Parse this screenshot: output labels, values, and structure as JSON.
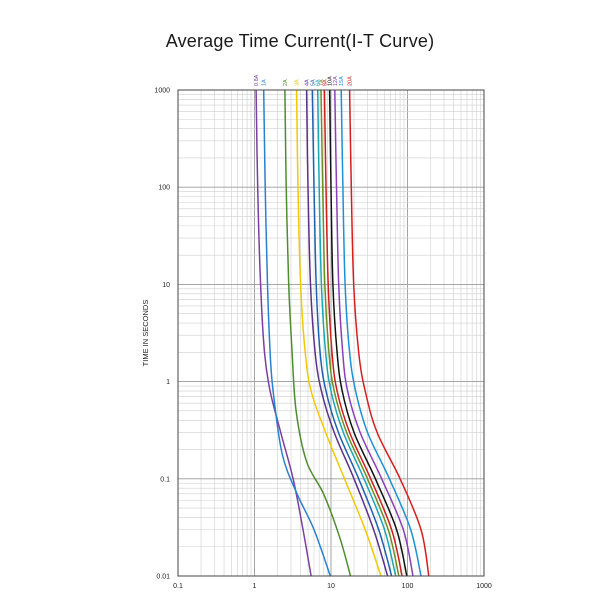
{
  "chart_data": {
    "type": "line",
    "title": "Average Time Current(I-T Curve)",
    "xlabel": "",
    "ylabel": "TIME IN SECONDS",
    "xscale": "log",
    "yscale": "log",
    "xlim": [
      0.1,
      1000
    ],
    "ylim": [
      0.01,
      1000
    ],
    "x_ticks": [
      "0.1",
      "1",
      "10",
      "100",
      "1000"
    ],
    "y_ticks": [
      "0.01",
      "0.1",
      "1",
      "10",
      "100",
      "1000"
    ],
    "grid": true,
    "legend_position": "top",
    "series": [
      {
        "name": "0.8A",
        "color": "#7a3fa0",
        "x": [
          1.05,
          1.1,
          1.2,
          1.35,
          1.6,
          2.2,
          3.2,
          4.3,
          5.5
        ],
        "y": [
          1000,
          100,
          10,
          2,
          0.8,
          0.3,
          0.1,
          0.03,
          0.01
        ]
      },
      {
        "name": "1A",
        "color": "#2a7fd0",
        "x": [
          1.32,
          1.38,
          1.48,
          1.6,
          1.75,
          2.3,
          3.6,
          6.0,
          9.8
        ],
        "y": [
          1000,
          100,
          10,
          2,
          0.8,
          0.18,
          0.07,
          0.03,
          0.01
        ]
      },
      {
        "name": "2A",
        "color": "#4e8c2e",
        "x": [
          2.5,
          2.6,
          2.8,
          3.1,
          3.5,
          4.8,
          8.0,
          13.0,
          18.0
        ],
        "y": [
          1000,
          100,
          10,
          2,
          0.5,
          0.15,
          0.07,
          0.025,
          0.01
        ]
      },
      {
        "name": "3A",
        "color": "#f2c800",
        "x": [
          3.55,
          3.7,
          4.0,
          4.6,
          5.5,
          8.5,
          15.0,
          28.0,
          45.0
        ],
        "y": [
          1000,
          100,
          10,
          2,
          0.8,
          0.3,
          0.1,
          0.03,
          0.01
        ]
      },
      {
        "name": "4A",
        "color": "#5c2f8a",
        "x": [
          4.8,
          5.0,
          5.4,
          6.2,
          7.5,
          11.0,
          20.0,
          36.0,
          55.0
        ],
        "y": [
          1000,
          100,
          10,
          2,
          0.8,
          0.3,
          0.1,
          0.03,
          0.01
        ]
      },
      {
        "name": "5A",
        "color": "#1f5fb0",
        "x": [
          5.7,
          6.0,
          6.4,
          7.2,
          8.6,
          12.5,
          23.0,
          42.0,
          62.0
        ],
        "y": [
          1000,
          100,
          10,
          2,
          0.8,
          0.3,
          0.1,
          0.03,
          0.01
        ]
      },
      {
        "name": "6A",
        "color": "#1aa6b5",
        "x": [
          6.7,
          7.0,
          7.5,
          8.5,
          10.0,
          14.5,
          27.0,
          50.0,
          70.0
        ],
        "y": [
          1000,
          100,
          10,
          2,
          0.8,
          0.3,
          0.1,
          0.03,
          0.01
        ]
      },
      {
        "name": "7A",
        "color": "#6b8e23",
        "x": [
          7.4,
          7.8,
          8.3,
          9.4,
          11.0,
          16.0,
          30.0,
          56.0,
          77.0
        ],
        "y": [
          1000,
          100,
          10,
          2,
          0.8,
          0.3,
          0.1,
          0.03,
          0.01
        ]
      },
      {
        "name": "8A",
        "color": "#d11c1c",
        "x": [
          8.2,
          8.6,
          9.2,
          10.3,
          12.0,
          17.5,
          33.0,
          62.0,
          85.0
        ],
        "y": [
          1000,
          100,
          10,
          2,
          0.8,
          0.3,
          0.1,
          0.03,
          0.01
        ]
      },
      {
        "name": "10A",
        "color": "#111111",
        "x": [
          9.6,
          10.0,
          10.6,
          12.0,
          14.0,
          20.0,
          38.0,
          72.0,
          98.0
        ],
        "y": [
          1000,
          100,
          10,
          2,
          0.8,
          0.3,
          0.1,
          0.03,
          0.01
        ]
      },
      {
        "name": "12A",
        "color": "#8a3fb8",
        "x": [
          11.2,
          11.8,
          12.6,
          14.2,
          16.5,
          24.0,
          46.0,
          88.0,
          118.0
        ],
        "y": [
          1000,
          100,
          10,
          2,
          0.8,
          0.3,
          0.1,
          0.03,
          0.01
        ]
      },
      {
        "name": "15A",
        "color": "#1d8fd6",
        "x": [
          13.6,
          14.3,
          15.3,
          17.5,
          21.0,
          30.0,
          58.0,
          110.0,
          150.0
        ],
        "y": [
          1000,
          100,
          10,
          2,
          0.8,
          0.3,
          0.1,
          0.03,
          0.01
        ]
      },
      {
        "name": "20A",
        "color": "#d71e1e",
        "x": [
          17.5,
          18.4,
          19.8,
          23.0,
          28.0,
          40.0,
          80.0,
          150.0,
          190.0
        ],
        "y": [
          1000,
          100,
          10,
          2,
          0.8,
          0.3,
          0.1,
          0.03,
          0.01
        ]
      }
    ]
  }
}
